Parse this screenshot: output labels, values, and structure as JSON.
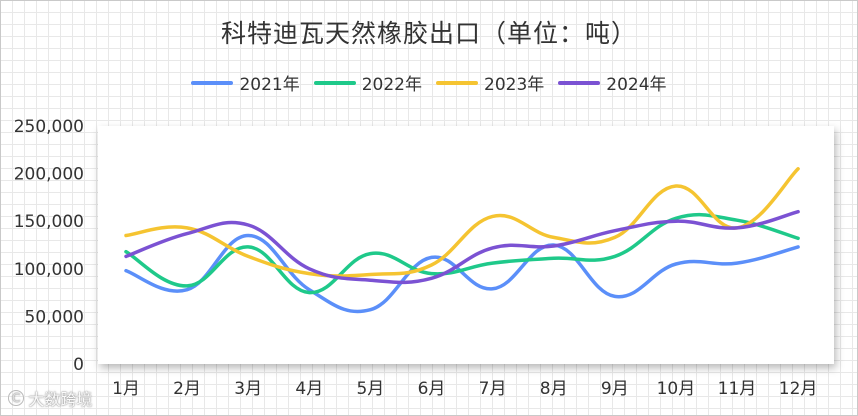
{
  "chart_data": {
    "type": "line",
    "title": "科特迪瓦天然橡胶出口（单位：吨）",
    "categories": [
      "1月",
      "2月",
      "3月",
      "4月",
      "5月",
      "6月",
      "7月",
      "8月",
      "9月",
      "10月",
      "11月",
      "12月"
    ],
    "ylim": [
      0,
      250000
    ],
    "yticks": [
      "0",
      "50,000",
      "100,000",
      "150,000",
      "200,000",
      "250,000"
    ],
    "legend_position": "top-center",
    "series": [
      {
        "name": "2021年",
        "color": "#5b8ff9",
        "values": [
          98000,
          78000,
          135000,
          78000,
          57000,
          112000,
          79000,
          125000,
          71000,
          105000,
          106000,
          123000
        ]
      },
      {
        "name": "2022年",
        "color": "#1fc98a",
        "values": [
          118000,
          82000,
          123000,
          75000,
          116000,
          95000,
          106000,
          111000,
          113000,
          153000,
          151000,
          132000
        ]
      },
      {
        "name": "2023年",
        "color": "#f5c431",
        "values": [
          135000,
          143000,
          113000,
          95000,
          94000,
          104000,
          155000,
          133000,
          133000,
          187000,
          143000,
          205000
        ]
      },
      {
        "name": "2024年",
        "color": "#7b52d3",
        "values": [
          113000,
          137000,
          146000,
          100000,
          88000,
          90000,
          122000,
          124000,
          140000,
          150000,
          143000,
          160000
        ]
      }
    ]
  },
  "watermark": "大数跨境"
}
